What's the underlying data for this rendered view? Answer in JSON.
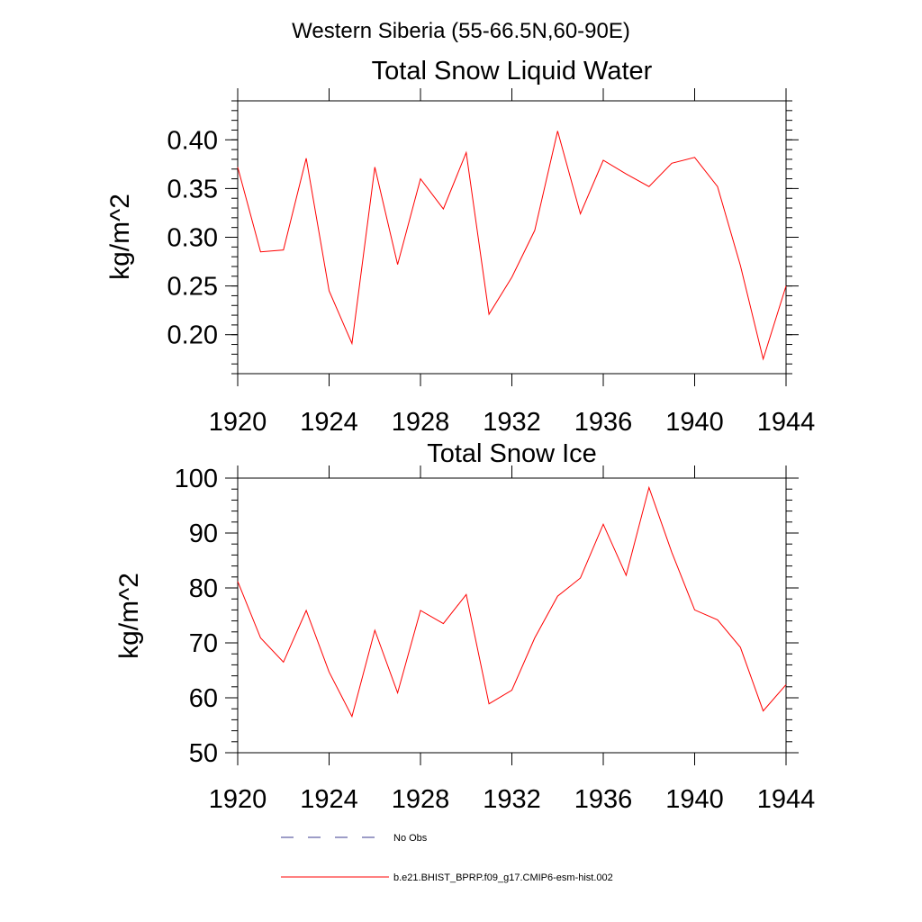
{
  "figure_title": "Western Siberia (55-66.5N,60-90E)",
  "legend": [
    {
      "label": "No Obs",
      "color": "#3b3b8f",
      "style": "dashed"
    },
    {
      "label": "b.e21.BHIST_BPRP.f09_g17.CMIP6-esm-hist.002",
      "color": "#ff0000",
      "style": "solid"
    }
  ],
  "chart_data": [
    {
      "type": "line",
      "title": "Total Snow Liquid Water",
      "xlabel": "",
      "ylabel": "kg/m^2",
      "xlim": [
        1920,
        1944
      ],
      "ylim": [
        0.16,
        0.44
      ],
      "xticks": [
        1920,
        1924,
        1928,
        1932,
        1936,
        1940,
        1944
      ],
      "yticks": [
        0.2,
        0.25,
        0.3,
        0.35,
        0.4
      ],
      "ytick_labels": [
        "0.20",
        "0.25",
        "0.30",
        "0.35",
        "0.40"
      ],
      "x": [
        1920,
        1921,
        1922,
        1923,
        1924,
        1925,
        1926,
        1927,
        1928,
        1929,
        1930,
        1931,
        1932,
        1933,
        1934,
        1935,
        1936,
        1937,
        1938,
        1939,
        1940,
        1941,
        1942,
        1943,
        1944
      ],
      "series": [
        {
          "color": "#ff0000",
          "values": [
            0.372,
            0.285,
            0.287,
            0.381,
            0.245,
            0.191,
            0.372,
            0.272,
            0.36,
            0.329,
            0.387,
            0.221,
            0.259,
            0.307,
            0.409,
            0.324,
            0.379,
            0.365,
            0.352,
            0.376,
            0.382,
            0.352,
            0.271,
            0.175,
            0.25
          ]
        }
      ]
    },
    {
      "type": "line",
      "title": "Total Snow Ice",
      "xlabel": "",
      "ylabel": "kg/m^2",
      "xlim": [
        1920,
        1944
      ],
      "ylim": [
        50,
        100
      ],
      "xticks": [
        1920,
        1924,
        1928,
        1932,
        1936,
        1940,
        1944
      ],
      "yticks": [
        50,
        60,
        70,
        80,
        90,
        100
      ],
      "ytick_labels": [
        "50",
        "60",
        "70",
        "80",
        "90",
        "100"
      ],
      "x": [
        1920,
        1921,
        1922,
        1923,
        1924,
        1925,
        1926,
        1927,
        1928,
        1929,
        1930,
        1931,
        1932,
        1933,
        1934,
        1935,
        1936,
        1937,
        1938,
        1939,
        1940,
        1941,
        1942,
        1943,
        1944
      ],
      "series": [
        {
          "color": "#ff0000",
          "values": [
            81.2,
            70.9,
            66.5,
            75.9,
            64.7,
            56.6,
            72.3,
            60.9,
            75.9,
            73.5,
            78.8,
            58.9,
            61.4,
            70.9,
            78.5,
            81.8,
            91.6,
            82.3,
            98.3,
            86.5,
            76.0,
            74.2,
            69.2,
            57.6,
            62.4
          ]
        }
      ]
    }
  ]
}
